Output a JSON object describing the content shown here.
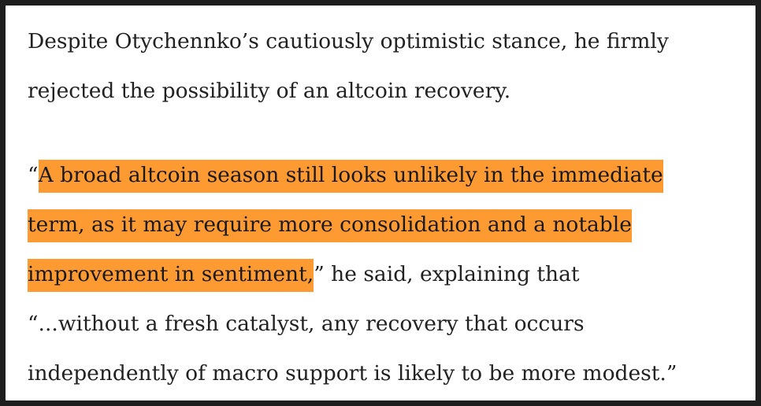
{
  "paragraph1": {
    "line1": "Despite Otychennko’s cautiously optimistic stance, he firmly",
    "line2": "rejected the possibility of an altcoin recovery."
  },
  "quote": {
    "open_quote": "“",
    "hl_line1": "A broad altcoin season still looks unlikely in the immediate",
    "hl_line2": "term, as it may require more consolidation and a notable",
    "hl_line3": "improvement in sentiment,",
    "after_hl": "” he said, explaining that",
    "line4": "“...without a fresh catalyst, any recovery that occurs",
    "line5": "independently of macro support is likely to be more modest.”"
  },
  "colors": {
    "highlight": "#fd9b32",
    "text": "#222222",
    "background": "#ffffff",
    "frame": "#1e1e1e"
  }
}
